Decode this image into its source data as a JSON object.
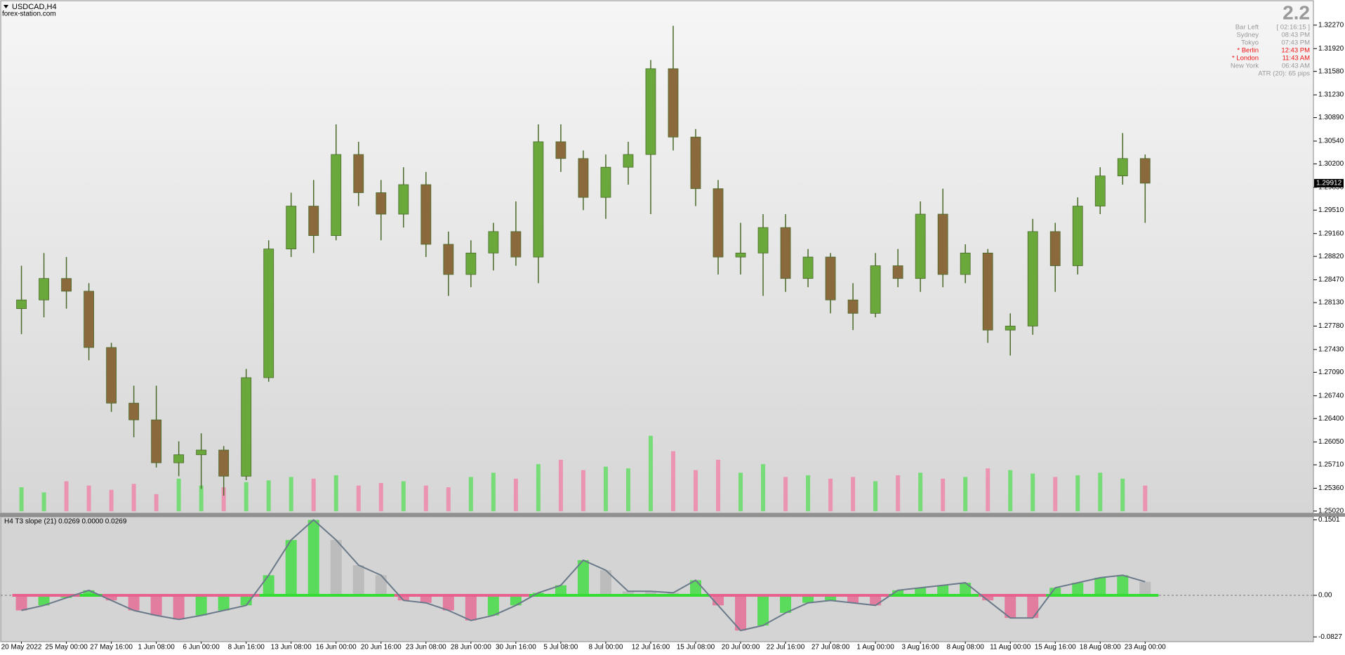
{
  "header": {
    "symbol": "USDCAD,H4",
    "site": "forex-station.com"
  },
  "info": {
    "big": "2.2",
    "rows": [
      [
        "Bar Left",
        "[ 02:16:15 ]"
      ],
      [
        "Sydney",
        "08:43 PM"
      ],
      [
        "Tokyo",
        "07:43 PM"
      ],
      [
        "* Berlin",
        "12:43 PM"
      ],
      [
        "* London",
        "11:43 AM"
      ],
      [
        "New York",
        "06:43 AM"
      ]
    ],
    "atr": "ATR (20): 65 pips",
    "highlight_color": "#ee1111",
    "color": "#999999"
  },
  "chart_data": [
    {
      "type": "candlestick",
      "up_color": "#6aa83c",
      "down_color": "#8a6a3c",
      "wick_color": "#4a6a2a",
      "volume_up_color": "#66dd66",
      "volume_down_color": "#ee88aa",
      "ylim": [
        1.2499,
        1.3262
      ],
      "yticks": [
        {
          "value": 1.3227,
          "label": "1.32270"
        },
        {
          "value": 1.3192,
          "label": "1.31920"
        },
        {
          "value": 1.3158,
          "label": "1.31580"
        },
        {
          "value": 1.3123,
          "label": "1.31230"
        },
        {
          "value": 1.3089,
          "label": "1.30890"
        },
        {
          "value": 1.3054,
          "label": "1.30540"
        },
        {
          "value": 1.302,
          "label": "1.30200"
        },
        {
          "value": 1.2985,
          "label": "1.29850"
        },
        {
          "value": 1.2951,
          "label": "1.29510"
        },
        {
          "value": 1.2916,
          "label": "1.29160"
        },
        {
          "value": 1.2882,
          "label": "1.28820"
        },
        {
          "value": 1.2847,
          "label": "1.28470"
        },
        {
          "value": 1.2813,
          "label": "1.28130"
        },
        {
          "value": 1.2778,
          "label": "1.27780"
        },
        {
          "value": 1.2743,
          "label": "1.27430"
        },
        {
          "value": 1.2709,
          "label": "1.27090"
        },
        {
          "value": 1.2674,
          "label": "1.26740"
        },
        {
          "value": 1.264,
          "label": "1.26400"
        },
        {
          "value": 1.2605,
          "label": "1.26050"
        },
        {
          "value": 1.2571,
          "label": "1.25710"
        },
        {
          "value": 1.2536,
          "label": "1.25360"
        },
        {
          "value": 1.2502,
          "label": "1.25020"
        }
      ],
      "current_price": {
        "value": 1.29912,
        "label": "1.29912"
      },
      "categories": [
        "20 May 2022",
        null,
        "25 May 00:00",
        null,
        "27 May 16:00",
        null,
        "1 Jun 08:00",
        null,
        "6 Jun 00:00",
        null,
        "8 Jun 16:00",
        null,
        "13 Jun 08:00",
        null,
        "16 Jun 00:00",
        null,
        "20 Jun 16:00",
        null,
        "23 Jun 08:00",
        null,
        "28 Jun 00:00",
        null,
        "30 Jun 16:00",
        null,
        "5 Jul 08:00",
        null,
        "8 Jul 00:00",
        null,
        "12 Jul 16:00",
        null,
        "15 Jul 08:00",
        null,
        "20 Jul 00:00",
        null,
        "22 Jul 16:00",
        null,
        "27 Jul 08:00",
        null,
        "1 Aug 00:00",
        null,
        "3 Aug 16:00",
        null,
        "8 Aug 08:00",
        null,
        "11 Aug 00:00",
        null,
        "15 Aug 16:00",
        null,
        "18 Aug 08:00",
        null,
        "23 Aug 00:00"
      ],
      "candles": [
        [
          1.2804,
          1.2868,
          1.2766,
          1.2817
        ],
        [
          1.2817,
          1.2887,
          1.2791,
          1.2849
        ],
        [
          1.2849,
          1.2881,
          1.2804,
          1.283
        ],
        [
          1.283,
          1.2842,
          1.2727,
          1.2746
        ],
        [
          1.2746,
          1.2753,
          1.265,
          1.2663
        ],
        [
          1.2663,
          1.2689,
          1.2612,
          1.2638
        ],
        [
          1.2638,
          1.2689,
          1.2567,
          1.2574
        ],
        [
          1.2574,
          1.2606,
          1.2554,
          1.2586
        ],
        [
          1.2586,
          1.2618,
          1.2535,
          1.2593
        ],
        [
          1.2593,
          1.2599,
          1.2525,
          1.2554
        ],
        [
          1.2554,
          1.2714,
          1.2548,
          1.2701
        ],
        [
          1.2701,
          1.2906,
          1.2695,
          1.2893
        ],
        [
          1.2893,
          1.2977,
          1.2881,
          1.2957
        ],
        [
          1.2957,
          1.2996,
          1.2887,
          1.2913
        ],
        [
          1.2913,
          1.3079,
          1.2906,
          1.3034
        ],
        [
          1.3034,
          1.3053,
          1.2957,
          1.2977
        ],
        [
          1.2977,
          1.2996,
          1.2906,
          1.2945
        ],
        [
          1.2945,
          1.3015,
          1.2925,
          1.2989
        ],
        [
          1.2989,
          1.3008,
          1.2881,
          1.29
        ],
        [
          1.29,
          1.2919,
          1.2823,
          1.2855
        ],
        [
          1.2855,
          1.2906,
          1.2836,
          1.2887
        ],
        [
          1.2887,
          1.2932,
          1.2861,
          1.2919
        ],
        [
          1.2919,
          1.2964,
          1.2868,
          1.2881
        ],
        [
          1.2881,
          1.3079,
          1.2842,
          1.3053
        ],
        [
          1.3053,
          1.3079,
          1.3008,
          1.3028
        ],
        [
          1.3028,
          1.304,
          1.2951,
          1.297
        ],
        [
          1.297,
          1.3034,
          1.2938,
          1.3015
        ],
        [
          1.3015,
          1.3053,
          1.2989,
          1.3034
        ],
        [
          1.3034,
          1.3175,
          1.2945,
          1.3162
        ],
        [
          1.3162,
          1.3226,
          1.304,
          1.306
        ],
        [
          1.306,
          1.3072,
          1.2957,
          1.2983
        ],
        [
          1.2983,
          1.2996,
          1.2855,
          1.2881
        ],
        [
          1.2881,
          1.2932,
          1.2855,
          1.2887
        ],
        [
          1.2887,
          1.2945,
          1.2823,
          1.2925
        ],
        [
          1.2925,
          1.2945,
          1.2829,
          1.2849
        ],
        [
          1.2849,
          1.2893,
          1.2836,
          1.2881
        ],
        [
          1.2881,
          1.2887,
          1.2797,
          1.2817
        ],
        [
          1.2817,
          1.2842,
          1.2772,
          1.2797
        ],
        [
          1.2797,
          1.2887,
          1.2791,
          1.2868
        ],
        [
          1.2868,
          1.2893,
          1.2836,
          1.2849
        ],
        [
          1.2849,
          1.2964,
          1.2829,
          1.2945
        ],
        [
          1.2945,
          1.2983,
          1.2836,
          1.2855
        ],
        [
          1.2855,
          1.29,
          1.2842,
          1.2887
        ],
        [
          1.2887,
          1.2893,
          1.2753,
          1.2772
        ],
        [
          1.2772,
          1.2797,
          1.2734,
          1.2778
        ],
        [
          1.2778,
          1.2938,
          1.2765,
          1.2919
        ],
        [
          1.2919,
          1.2932,
          1.2829,
          1.2868
        ],
        [
          1.2868,
          1.297,
          1.2855,
          1.2957
        ],
        [
          1.2957,
          1.3015,
          1.2945,
          1.3002
        ],
        [
          1.3002,
          1.3066,
          1.2989,
          1.3028
        ],
        [
          1.3028,
          1.3034,
          1.2932,
          1.29912
        ]
      ],
      "volumes": [
        28,
        22,
        35,
        30,
        25,
        32,
        20,
        38,
        30,
        28,
        34,
        36,
        40,
        38,
        42,
        30,
        33,
        35,
        30,
        28,
        40,
        45,
        38,
        55,
        60,
        48,
        52,
        50,
        88,
        70,
        48,
        60,
        45,
        55,
        40,
        42,
        38,
        40,
        35,
        42,
        45,
        38,
        40,
        50,
        48,
        44,
        40,
        42,
        45,
        38,
        30
      ]
    },
    {
      "type": "bar",
      "title": "H4 T3 slope (21) 0.0269 0.0000 0.0269",
      "colors": {
        "up": "#33dd33",
        "down": "#e8608e",
        "flat": "#b4b4b4",
        "line": "#6a7a8a"
      },
      "ylim": [
        -0.0922,
        0.157
      ],
      "yticks": [
        0.1501,
        {
          "value": 0,
          "label": "0.00"
        },
        -0.0827
      ],
      "values": [
        -0.03,
        -0.02,
        -0.005,
        0.01,
        -0.01,
        -0.03,
        -0.04,
        -0.048,
        -0.04,
        -0.03,
        -0.02,
        0.04,
        0.11,
        0.15,
        0.11,
        0.06,
        0.04,
        -0.01,
        -0.015,
        -0.03,
        -0.05,
        -0.04,
        -0.02,
        0.005,
        0.02,
        0.07,
        0.05,
        0.008,
        0.008,
        0.005,
        0.03,
        -0.02,
        -0.07,
        -0.06,
        -0.035,
        -0.015,
        -0.01,
        -0.015,
        -0.02,
        0.01,
        0.015,
        0.02,
        0.025,
        -0.01,
        -0.045,
        -0.045,
        0.015,
        0.025,
        0.035,
        0.04,
        0.0269
      ]
    }
  ]
}
